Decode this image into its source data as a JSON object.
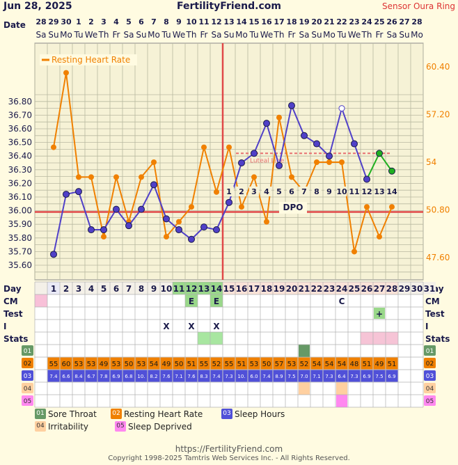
{
  "header": {
    "date": "Jun 28, 2025",
    "site": "FertilityFriend.com",
    "sensor": "Sensor Oura Ring"
  },
  "calendar": {
    "date_label": "Date",
    "dates": [
      "28",
      "29",
      "30",
      "1",
      "2",
      "3",
      "4",
      "5",
      "6",
      "7",
      "8",
      "9",
      "10",
      "11",
      "12",
      "13",
      "14",
      "15",
      "16",
      "17",
      "18",
      "19",
      "20",
      "21",
      "22",
      "23",
      "24",
      "25",
      "26",
      "27",
      "28"
    ],
    "weekdays": [
      "Sa",
      "Su",
      "Mo",
      "Tu",
      "We",
      "Th",
      "Fr",
      "Sa",
      "Su",
      "Mo",
      "Tu",
      "We",
      "Th",
      "Fr",
      "Sa",
      "Su",
      "Mo",
      "Tu",
      "We",
      "Th",
      "Fr",
      "Sa",
      "Su",
      "Mo",
      "Tu",
      "We",
      "Th",
      "Fr",
      "Sa",
      "Su",
      "Mo"
    ]
  },
  "chart_data": {
    "type": "line",
    "legend": "Resting Heart Rate",
    "left_axis": {
      "ticks": [
        "35.60",
        "35.70",
        "35.80",
        "35.90",
        "36.00",
        "36.10",
        "36.20",
        "36.30",
        "36.40",
        "36.50",
        "36.60",
        "36.70",
        "36.80"
      ],
      "range": [
        35.6,
        36.8
      ]
    },
    "right_axis": {
      "ticks": [
        "47.60",
        "50.80",
        "54",
        "57.20",
        "60.40"
      ],
      "range": [
        47.6,
        60.4
      ]
    },
    "coverline": 35.99,
    "ovulation_day": 14,
    "temperature": {
      "days": [
        1,
        2,
        3,
        4,
        5,
        6,
        7,
        8,
        9,
        10,
        11,
        12,
        13,
        14,
        15,
        16,
        17,
        18,
        19,
        20,
        21,
        22,
        23,
        24,
        25,
        26,
        27,
        28
      ],
      "values": [
        35.68,
        36.12,
        36.14,
        35.86,
        35.86,
        36.01,
        35.89,
        36.01,
        36.19,
        35.94,
        35.86,
        35.79,
        35.88,
        35.86,
        36.06,
        36.35,
        36.42,
        36.64,
        36.33,
        36.77,
        36.55,
        36.49,
        36.4,
        36.75,
        36.49,
        36.23,
        36.42,
        36.29
      ],
      "open_days": [
        24
      ],
      "green_days": [
        26,
        27,
        28
      ]
    },
    "resting_heart_rate": {
      "days": [
        1,
        2,
        3,
        4,
        5,
        6,
        7,
        8,
        9,
        10,
        11,
        12,
        13,
        14,
        15,
        16,
        17,
        18,
        19,
        20,
        21,
        22,
        23,
        24,
        25,
        26,
        27,
        28
      ],
      "values": [
        55,
        60,
        53,
        53,
        49,
        53,
        50,
        53,
        54,
        49,
        50,
        51,
        55,
        52,
        55,
        51,
        53,
        50,
        57,
        53,
        52,
        54,
        54,
        54,
        48,
        51,
        49,
        51
      ]
    },
    "luteal_line": {
      "label": "Luteal Line",
      "value": 36.42,
      "from_day": 16,
      "to_day": 28
    },
    "dpo_label": "DPO",
    "dpo_numbers": [
      "1",
      "2",
      "3",
      "4",
      "5",
      "6",
      "7",
      "8",
      "9",
      "10",
      "11",
      "12",
      "13",
      "14"
    ]
  },
  "grid": {
    "day_label": "Day",
    "rows": [
      "CM",
      "Test",
      "I",
      "Stats"
    ],
    "cm_marks": [
      {
        "day": 14,
        "text": "E"
      },
      {
        "day": 12,
        "text": "E"
      },
      {
        "day": 24,
        "text": "C"
      }
    ],
    "test_marks": [
      {
        "day": 27,
        "text": "+"
      }
    ],
    "intercourse_marks": [
      {
        "day": 10,
        "text": "X"
      },
      {
        "day": 12,
        "text": "X"
      },
      {
        "day": 14,
        "text": "X"
      }
    ],
    "rhr_label": "02",
    "rhr_values": [
      "55",
      "60",
      "53",
      "53",
      "49",
      "53",
      "50",
      "53",
      "54",
      "49",
      "50",
      "51",
      "55",
      "52",
      "55",
      "51",
      "53",
      "50",
      "57",
      "53",
      "52",
      "54",
      "54",
      "54",
      "48",
      "51",
      "49",
      "51"
    ],
    "sleep_label": "03",
    "sleep_values": [
      "7.4",
      "6.6",
      "8.4",
      "6.7",
      "7.8",
      "6.9",
      "6.8",
      "10.",
      "8.2",
      "7.6",
      "7.1",
      "7.6",
      "8.3",
      "7.4",
      "7.3",
      "10.",
      "6.0",
      "7.4",
      "8.9",
      "7.5",
      "7.0",
      "7.1",
      "7.3",
      "6.4",
      "7.3",
      "6.9",
      "7.5",
      "6.9"
    ],
    "row01_label": "01",
    "row04_label": "04",
    "row05_label": "05"
  },
  "legend": [
    {
      "code": "01",
      "label": "Sore Throat",
      "color": "#669966"
    },
    {
      "code": "02",
      "label": "Resting Heart Rate",
      "color": "#f08000"
    },
    {
      "code": "03",
      "label": "Sleep Hours",
      "color": "#5050d8"
    },
    {
      "code": "04",
      "label": "Irritability",
      "color": "#ffd0a0"
    },
    {
      "code": "05",
      "label": "Sleep Deprived",
      "color": "#ff88f0"
    }
  ],
  "footer": {
    "url": "https://FertilityFriend.com",
    "copyright": "Copyright 1998-2025 Tamtris Web Services Inc. - All Rights Reserved."
  }
}
